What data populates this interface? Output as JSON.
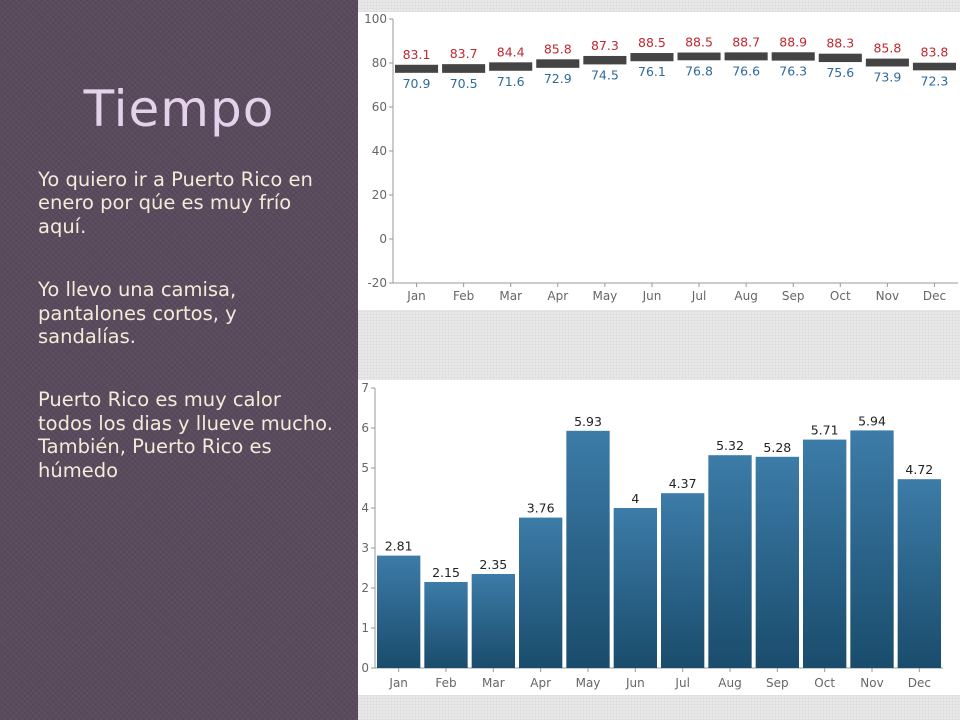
{
  "slide": {
    "title": "Tiempo",
    "paragraphs": [
      "Yo quiero ir a Puerto Rico en enero por qúe es muy frío aquí.",
      "Yo llevo una camisa, pantalones cortos, y sandalías.",
      "Puerto Rico es muy calor todos los dias y llueve mucho. También, Puerto Rico es húmedo"
    ]
  },
  "colors": {
    "left_panel": "#5a4a5d",
    "title": "#e4d2ea",
    "body_text": "#f2ecd8",
    "high_label": "#c0282f",
    "low_label": "#2d6a9f",
    "range_bar": "#444444",
    "rain_bar_top": "#3c7ca8",
    "rain_bar_bottom": "#1a4c6c"
  },
  "chart_data": [
    {
      "type": "bar",
      "variant": "floating-range",
      "categories": [
        "Jan",
        "Feb",
        "Mar",
        "Apr",
        "May",
        "Jun",
        "Jul",
        "Aug",
        "Sep",
        "Oct",
        "Nov",
        "Dec"
      ],
      "series": [
        {
          "name": "",
          "values": [
            83.1,
            83.7,
            84.4,
            85.8,
            87.3,
            88.5,
            88.5,
            88.7,
            88.9,
            88.3,
            85.8,
            83.8
          ]
        },
        {
          "name": "",
          "values": [
            70.9,
            70.5,
            71.6,
            72.9,
            74.5,
            76.1,
            76.8,
            76.6,
            76.3,
            75.6,
            73.9,
            72.3
          ]
        }
      ],
      "high_label_text": [
        "83.1",
        "83.7",
        "84.4",
        "85.8",
        "87.3",
        "88.5",
        "88.5",
        "88.7",
        "88.9",
        "88.3",
        "85.8",
        "83.8"
      ],
      "low_label_text": [
        "70.9",
        "70.5",
        "71.6",
        "72.9",
        "74.5",
        "76.1",
        "76.8",
        "76.6",
        "76.3",
        "75.6",
        "73.9",
        "72.3"
      ],
      "ylim": [
        -20,
        100
      ],
      "yticks": [
        "100",
        "80",
        "60",
        "40",
        "20",
        "0",
        "-20"
      ],
      "title": "",
      "xlabel": "",
      "ylabel": "",
      "grid": false
    },
    {
      "type": "bar",
      "categories": [
        "Jan",
        "Feb",
        "Mar",
        "Apr",
        "May",
        "Jun",
        "Jul",
        "Aug",
        "Sep",
        "Oct",
        "Nov",
        "Dec"
      ],
      "values": [
        2.81,
        2.15,
        2.35,
        3.76,
        5.93,
        4,
        4.37,
        5.32,
        5.28,
        5.71,
        5.94,
        4.72
      ],
      "value_label_text": [
        "2.81",
        "2.15",
        "2.35",
        "3.76",
        "5.93",
        "4",
        "4.37",
        "5.32",
        "5.28",
        "5.71",
        "5.94",
        "4.72"
      ],
      "ylim": [
        0,
        7
      ],
      "yticks": [
        "7",
        "6",
        "5",
        "4",
        "3",
        "2",
        "1",
        "0"
      ],
      "title": "",
      "xlabel": "",
      "ylabel": "",
      "grid": false
    }
  ]
}
